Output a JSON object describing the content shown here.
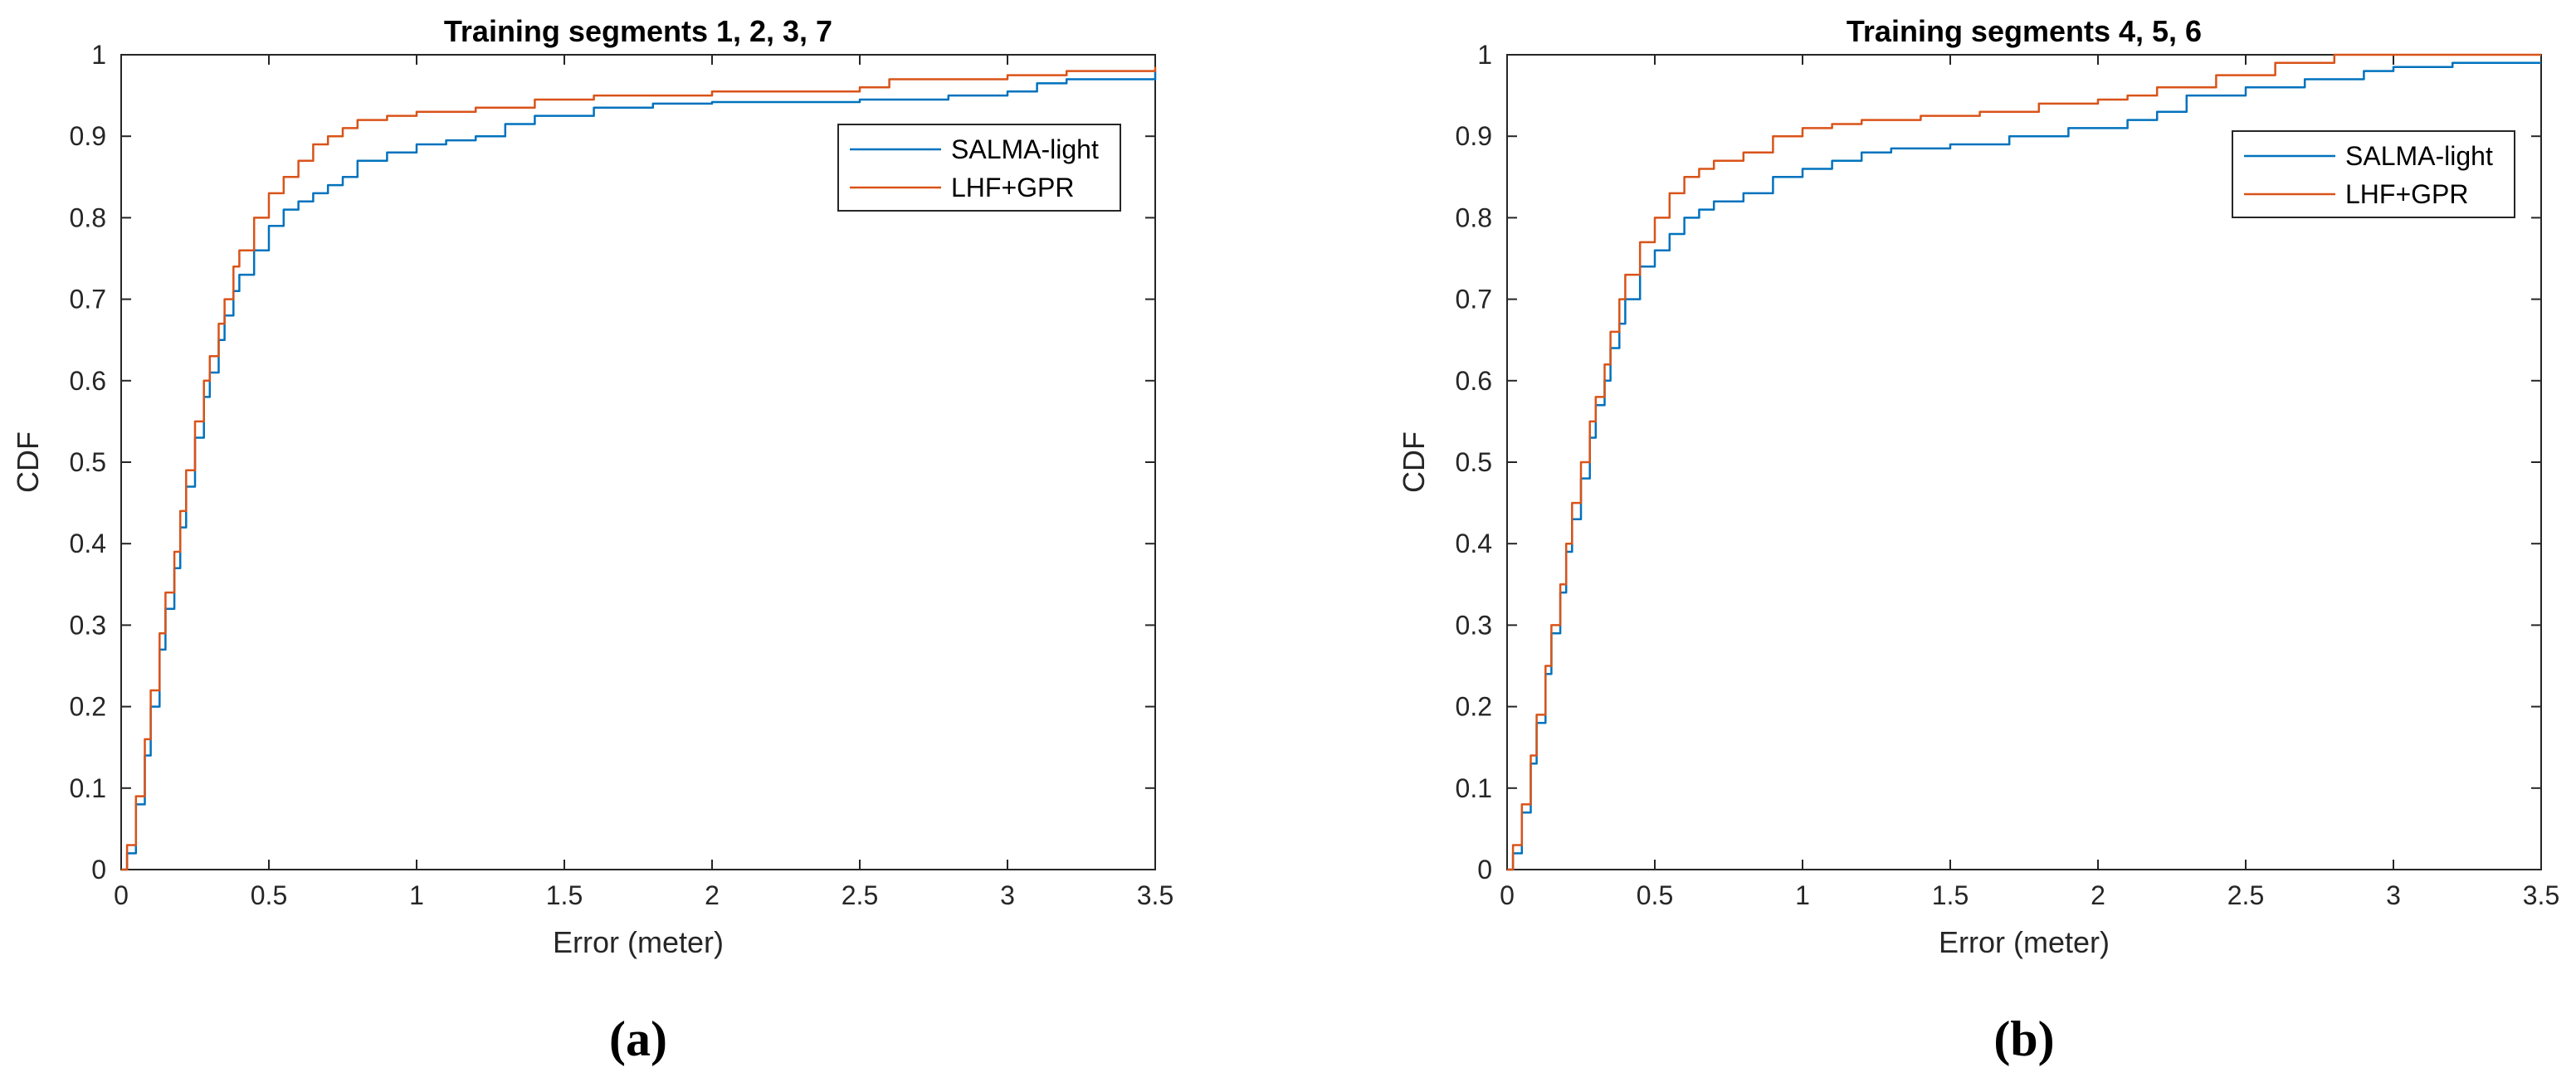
{
  "chart_data": [
    {
      "type": "line",
      "title": "Training segments 1, 2, 3, 7",
      "panel_label": "(a)",
      "xlabel": "Error (meter)",
      "ylabel": "CDF",
      "xlim": [
        0,
        3.5
      ],
      "ylim": [
        0,
        1
      ],
      "xticks": [
        "0",
        "0.5",
        "1",
        "1.5",
        "2",
        "2.5",
        "3",
        "3.5"
      ],
      "yticks": [
        "0",
        "0.1",
        "0.2",
        "0.3",
        "0.4",
        "0.5",
        "0.6",
        "0.7",
        "0.8",
        "0.9",
        "1"
      ],
      "grid": false,
      "legend_position": "top-right",
      "series": [
        {
          "name": "SALMA-light",
          "color": "#0072BD",
          "x": [
            0,
            0.02,
            0.05,
            0.08,
            0.1,
            0.13,
            0.15,
            0.18,
            0.2,
            0.22,
            0.25,
            0.28,
            0.3,
            0.33,
            0.35,
            0.38,
            0.4,
            0.45,
            0.5,
            0.55,
            0.6,
            0.65,
            0.7,
            0.75,
            0.8,
            0.9,
            1.0,
            1.1,
            1.2,
            1.3,
            1.4,
            1.6,
            1.8,
            2.0,
            2.5,
            2.8,
            3.0,
            3.1,
            3.2,
            3.5
          ],
          "y": [
            0,
            0.02,
            0.08,
            0.14,
            0.2,
            0.27,
            0.32,
            0.37,
            0.42,
            0.47,
            0.53,
            0.58,
            0.61,
            0.65,
            0.68,
            0.71,
            0.73,
            0.76,
            0.79,
            0.81,
            0.82,
            0.83,
            0.84,
            0.85,
            0.87,
            0.88,
            0.89,
            0.895,
            0.9,
            0.915,
            0.925,
            0.935,
            0.94,
            0.942,
            0.945,
            0.95,
            0.955,
            0.965,
            0.97,
            0.98
          ]
        },
        {
          "name": "LHF+GPR",
          "color": "#D95319",
          "x": [
            0,
            0.02,
            0.05,
            0.08,
            0.1,
            0.13,
            0.15,
            0.18,
            0.2,
            0.22,
            0.25,
            0.28,
            0.3,
            0.33,
            0.35,
            0.38,
            0.4,
            0.45,
            0.5,
            0.55,
            0.6,
            0.65,
            0.7,
            0.75,
            0.8,
            0.9,
            1.0,
            1.2,
            1.4,
            1.6,
            2.0,
            2.5,
            2.6,
            3.0,
            3.2,
            3.5
          ],
          "y": [
            0,
            0.03,
            0.09,
            0.16,
            0.22,
            0.29,
            0.34,
            0.39,
            0.44,
            0.49,
            0.55,
            0.6,
            0.63,
            0.67,
            0.7,
            0.74,
            0.76,
            0.8,
            0.83,
            0.85,
            0.87,
            0.89,
            0.9,
            0.91,
            0.92,
            0.925,
            0.93,
            0.935,
            0.945,
            0.95,
            0.955,
            0.96,
            0.97,
            0.975,
            0.98,
            0.985
          ]
        }
      ]
    },
    {
      "type": "line",
      "title": "Training segments 4, 5, 6",
      "panel_label": "(b)",
      "xlabel": "Error (meter)",
      "ylabel": "CDF",
      "xlim": [
        0,
        3.5
      ],
      "ylim": [
        0,
        1
      ],
      "xticks": [
        "0",
        "0.5",
        "1",
        "1.5",
        "2",
        "2.5",
        "3",
        "3.5"
      ],
      "yticks": [
        "0",
        "0.1",
        "0.2",
        "0.3",
        "0.4",
        "0.5",
        "0.6",
        "0.7",
        "0.8",
        "0.9",
        "1"
      ],
      "grid": false,
      "legend_position": "top-right",
      "series": [
        {
          "name": "SALMA-light",
          "color": "#0072BD",
          "x": [
            0,
            0.02,
            0.05,
            0.08,
            0.1,
            0.13,
            0.15,
            0.18,
            0.2,
            0.22,
            0.25,
            0.28,
            0.3,
            0.33,
            0.35,
            0.38,
            0.4,
            0.45,
            0.5,
            0.55,
            0.6,
            0.65,
            0.7,
            0.8,
            0.9,
            1.0,
            1.1,
            1.2,
            1.3,
            1.5,
            1.7,
            1.9,
            2.1,
            2.2,
            2.3,
            2.5,
            2.7,
            2.9,
            3.0,
            3.2,
            3.5
          ],
          "y": [
            0,
            0.02,
            0.07,
            0.13,
            0.18,
            0.24,
            0.29,
            0.34,
            0.39,
            0.43,
            0.48,
            0.53,
            0.57,
            0.6,
            0.64,
            0.67,
            0.7,
            0.74,
            0.76,
            0.78,
            0.8,
            0.81,
            0.82,
            0.83,
            0.85,
            0.86,
            0.87,
            0.88,
            0.885,
            0.89,
            0.9,
            0.91,
            0.92,
            0.93,
            0.95,
            0.96,
            0.97,
            0.98,
            0.985,
            0.99,
            0.99
          ]
        },
        {
          "name": "LHF+GPR",
          "color": "#D95319",
          "x": [
            0,
            0.02,
            0.05,
            0.08,
            0.1,
            0.13,
            0.15,
            0.18,
            0.2,
            0.22,
            0.25,
            0.28,
            0.3,
            0.33,
            0.35,
            0.38,
            0.4,
            0.45,
            0.5,
            0.55,
            0.6,
            0.65,
            0.7,
            0.8,
            0.9,
            1.0,
            1.1,
            1.2,
            1.4,
            1.6,
            1.8,
            2.0,
            2.1,
            2.2,
            2.4,
            2.6,
            2.8,
            3.0,
            3.5
          ],
          "y": [
            0,
            0.03,
            0.08,
            0.14,
            0.19,
            0.25,
            0.3,
            0.35,
            0.4,
            0.45,
            0.5,
            0.55,
            0.58,
            0.62,
            0.66,
            0.7,
            0.73,
            0.77,
            0.8,
            0.83,
            0.85,
            0.86,
            0.87,
            0.88,
            0.9,
            0.91,
            0.915,
            0.92,
            0.925,
            0.93,
            0.94,
            0.945,
            0.95,
            0.96,
            0.975,
            0.99,
            1.0,
            1.0,
            1.0
          ]
        }
      ]
    }
  ]
}
